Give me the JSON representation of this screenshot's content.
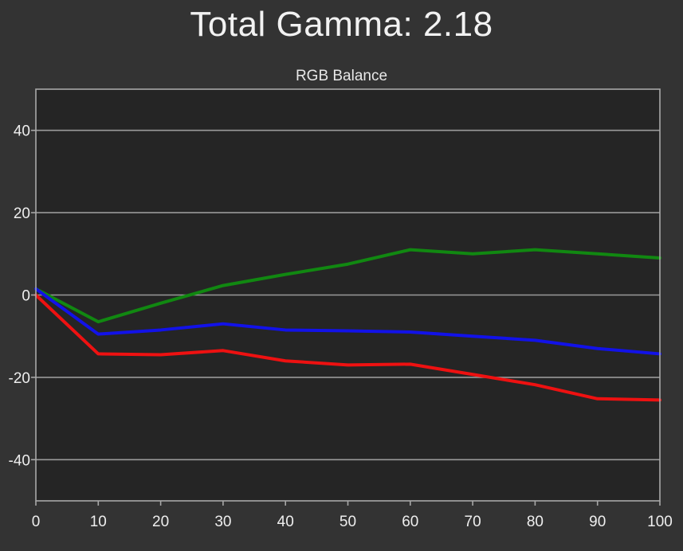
{
  "page": {
    "title": "Total Gamma: 2.18"
  },
  "chart_data": {
    "type": "line",
    "title": "RGB Balance",
    "xlabel": "",
    "ylabel": "",
    "x": [
      0,
      10,
      20,
      30,
      40,
      50,
      60,
      70,
      80,
      90,
      100
    ],
    "xlim": [
      0,
      100
    ],
    "ylim": [
      -50,
      50
    ],
    "xticks": [
      0,
      10,
      20,
      30,
      40,
      50,
      60,
      70,
      80,
      90,
      100
    ],
    "yticks": [
      -40,
      -20,
      0,
      20,
      40
    ],
    "grid": "horizontal",
    "legend": "none",
    "background_color": "#333333",
    "plot_background_color": "#252525",
    "series": [
      {
        "color": "#118811",
        "values": [
          1.5,
          -6.5,
          -2,
          2.3,
          5,
          7.5,
          11,
          10,
          11,
          10,
          9
        ]
      },
      {
        "color": "#1212e8",
        "values": [
          1.5,
          -9.5,
          -8.5,
          -7,
          -8.5,
          -8.7,
          -9,
          -10,
          -11,
          -13,
          -14.3
        ]
      },
      {
        "color": "#ee1111",
        "values": [
          0,
          -14.3,
          -14.5,
          -13.5,
          -16,
          -17,
          -16.8,
          -19.3,
          -21.8,
          -25.2,
          -25.5
        ]
      }
    ]
  }
}
